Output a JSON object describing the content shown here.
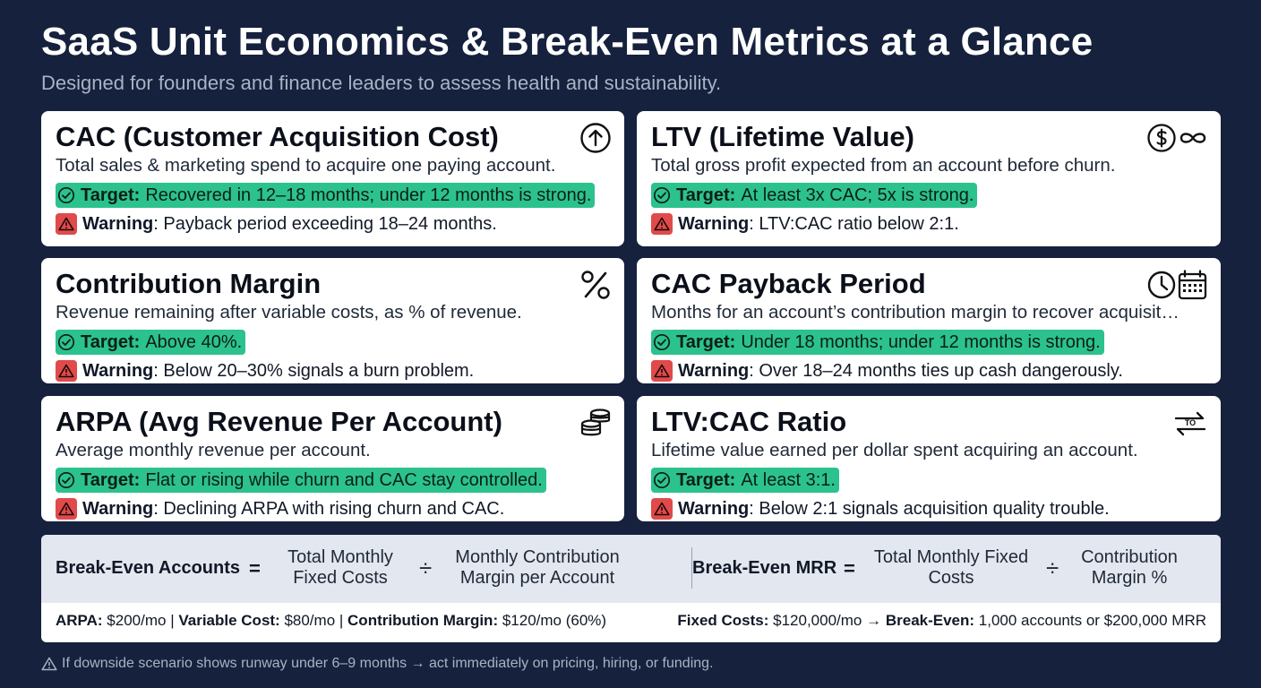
{
  "header": {
    "title": "SaaS Unit Economics & Break-Even Metrics at a Glance",
    "subtitle": "Designed for founders and finance leaders to assess health and sustainability."
  },
  "colors": {
    "background": "#15213d",
    "target_highlight": "#2cc28e",
    "warning": "#e04a4a",
    "card": "#ffffff"
  },
  "cards": [
    {
      "title": "CAC (Customer Acquisition Cost)",
      "icon": "arrow-up-circle-icon",
      "description": "Total sales & marketing spend to acquire one paying account.",
      "target_label": "Target:",
      "target_text": "Recovered in 12–18 months; under 12 months is strong.",
      "warning_label": "Warning",
      "warning_text": ": Payback period exceeding 18–24 months."
    },
    {
      "title": "LTV (Lifetime Value)",
      "icon": "dollar-infinity-icon",
      "description": "Total gross profit expected from an account before churn.",
      "target_label": "Target:",
      "target_text": "At least 3x CAC; 5x is strong.",
      "warning_label": "Warning",
      "warning_text": ": LTV:CAC ratio below 2:1."
    },
    {
      "title": "Contribution Margin",
      "icon": "percent-icon",
      "description": "Revenue remaining after variable costs, as % of revenue.",
      "target_label": "Target:",
      "target_text": "Above 40%.",
      "warning_label": "Warning",
      "warning_text": ": Below 20–30% signals a burn problem."
    },
    {
      "title": "CAC Payback Period",
      "icon": "clock-calendar-icon",
      "description": "Months for an account’s contribution margin to recover acquisit…",
      "target_label": "Target:",
      "target_text": "Under 18 months; under 12 months is strong.",
      "warning_label": "Warning",
      "warning_text": ": Over 18–24 months ties up cash dangerously."
    },
    {
      "title": "ARPA (Avg Revenue Per Account)",
      "icon": "coin-stack-icon",
      "description": "Average monthly revenue per account.",
      "target_label": "Target:",
      "target_text": "Flat or rising while churn and CAC stay controlled.",
      "warning_label": "Warning",
      "warning_text": ": Declining ARPA with rising churn and CAC."
    },
    {
      "title": "LTV:CAC Ratio",
      "icon": "exchange-arrows-icon",
      "icon_text": "TO",
      "description": "Lifetime value earned per dollar spent acquiring an account.",
      "target_label": "Target:",
      "target_text": "At least 3:1.",
      "warning_label": "Warning",
      "warning_text": ": Below 2:1 signals acquisition quality trouble."
    }
  ],
  "formulas": {
    "left": {
      "label": "Break-Even Accounts",
      "equals": "=",
      "numerator": "Total Monthly\nFixed Costs",
      "divide": "÷",
      "denominator": "Monthly Contribution\nMargin per Account"
    },
    "right": {
      "label": "Break-Even MRR",
      "equals": "=",
      "numerator": "Total Monthly Fixed\nCosts",
      "divide": "÷",
      "denominator": "Contribution\nMargin %"
    },
    "example_left": {
      "arpa_label": "ARPA:",
      "arpa_value": " $200/mo",
      "sep1": " | ",
      "variable_label": "Variable Cost:",
      "variable_value": " $80/mo",
      "sep2": " | ",
      "margin_label": "Contribution Margin:",
      "margin_value": " $120/mo (60%)"
    },
    "example_right": {
      "fixed_label": "Fixed Costs:",
      "fixed_value": " $120,000/mo → ",
      "breakeven_label": "Break-Even:",
      "breakeven_value": " 1,000 accounts or $200,000 MRR"
    }
  },
  "footnote": {
    "icon": "warning-outline-icon",
    "text": "If downside scenario shows runway under 6–9 months → act immediately on pricing, hiring, or funding."
  }
}
